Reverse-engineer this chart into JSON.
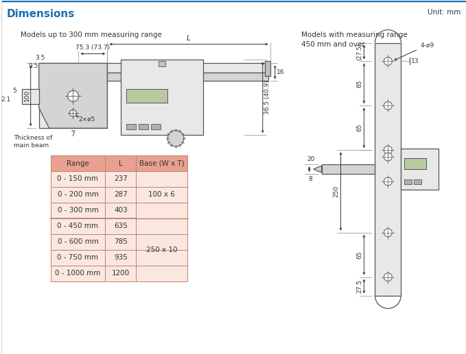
{
  "title": "Dimensions",
  "title_color": "#1a6faf",
  "bg_color": "#ffffff",
  "border_color": "#cccccc",
  "unit_text": "Unit: mm",
  "left_label": "Models up to 300 mm measuring range",
  "right_label": "Models with measuring range\n450 mm and over",
  "table_header_bg": "#e8a090",
  "table_body_bg": "#fae8e0",
  "table_border": "#c08070",
  "table_header": [
    "Range",
    "L",
    "Base (W x T)"
  ],
  "table_rows": [
    [
      "0 - 150 mm",
      "237",
      ""
    ],
    [
      "0 - 200 mm",
      "287",
      "100 x 6"
    ],
    [
      "0 - 300 mm",
      "403",
      ""
    ],
    [
      "0 - 450 mm",
      "635",
      ""
    ],
    [
      "0 - 600 mm",
      "785",
      "250 x 10"
    ],
    [
      "0 - 750 mm",
      "935",
      ""
    ],
    [
      "0 - 1000 mm",
      "1200",
      ""
    ]
  ],
  "draw_color": "#555555",
  "dim_color": "#333333",
  "ext_color": "#888888"
}
